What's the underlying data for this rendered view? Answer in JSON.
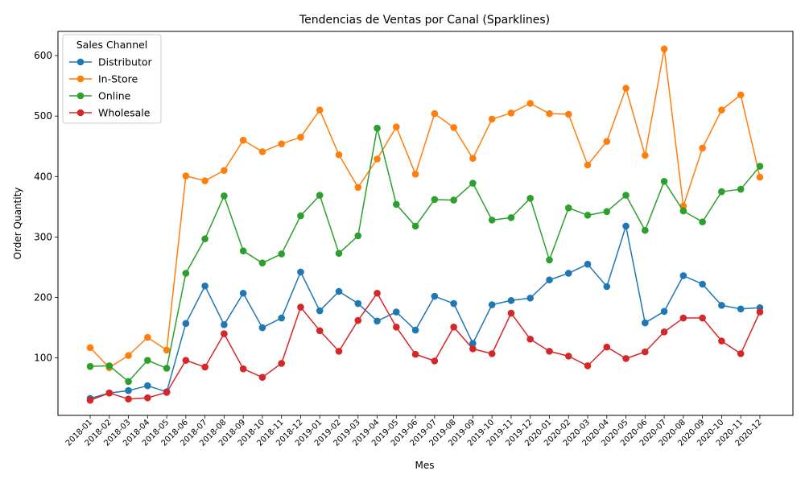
{
  "chart_data": {
    "type": "line",
    "title": "Tendencias de Ventas por Canal (Sparklines)",
    "xlabel": "Mes",
    "ylabel": "Order Quantity",
    "legend_title": "Sales Channel",
    "legend_position": "top-left",
    "grid": false,
    "ylim": [
      5,
      640
    ],
    "yticks": [
      100,
      200,
      300,
      400,
      500,
      600
    ],
    "categories": [
      "2018-01",
      "2018-02",
      "2018-03",
      "2018-04",
      "2018-05",
      "2018-06",
      "2018-07",
      "2018-08",
      "2018-09",
      "2018-10",
      "2018-11",
      "2018-12",
      "2019-01",
      "2019-02",
      "2019-03",
      "2019-04",
      "2019-05",
      "2019-06",
      "2019-07",
      "2019-08",
      "2019-09",
      "2019-10",
      "2019-11",
      "2019-12",
      "2020-01",
      "2020-02",
      "2020-03",
      "2020-04",
      "2020-05",
      "2020-06",
      "2020-07",
      "2020-08",
      "2020-09",
      "2020-10",
      "2020-11",
      "2020-12"
    ],
    "series": [
      {
        "name": "Distributor",
        "color": "#1f77b4",
        "values": [
          33,
          42,
          46,
          54,
          44,
          157,
          219,
          155,
          207,
          150,
          166,
          242,
          178,
          210,
          190,
          161,
          176,
          146,
          202,
          190,
          124,
          188,
          195,
          199,
          229,
          240,
          255,
          218,
          318,
          158,
          177,
          236,
          222,
          187,
          181,
          183
        ]
      },
      {
        "name": "In-Store",
        "color": "#ff7f0e",
        "values": [
          117,
          84,
          104,
          134,
          113,
          401,
          393,
          410,
          460,
          441,
          454,
          465,
          510,
          436,
          382,
          429,
          482,
          404,
          504,
          481,
          430,
          495,
          505,
          521,
          504,
          503,
          419,
          458,
          546,
          435,
          611,
          351,
          447,
          510,
          535,
          399
        ]
      },
      {
        "name": "Online",
        "color": "#2ca02c",
        "values": [
          86,
          87,
          61,
          96,
          83,
          240,
          297,
          368,
          277,
          257,
          272,
          335,
          369,
          273,
          302,
          480,
          354,
          318,
          362,
          361,
          389,
          328,
          332,
          364,
          262,
          348,
          336,
          342,
          369,
          311,
          392,
          343,
          325,
          375,
          379,
          417
        ]
      },
      {
        "name": "Wholesale",
        "color": "#d62728",
        "values": [
          30,
          42,
          32,
          34,
          43,
          96,
          85,
          140,
          82,
          68,
          91,
          184,
          145,
          111,
          162,
          207,
          151,
          106,
          95,
          151,
          115,
          107,
          174,
          131,
          111,
          103,
          87,
          118,
          99,
          110,
          143,
          166,
          166,
          128,
          107,
          176
        ]
      }
    ]
  }
}
